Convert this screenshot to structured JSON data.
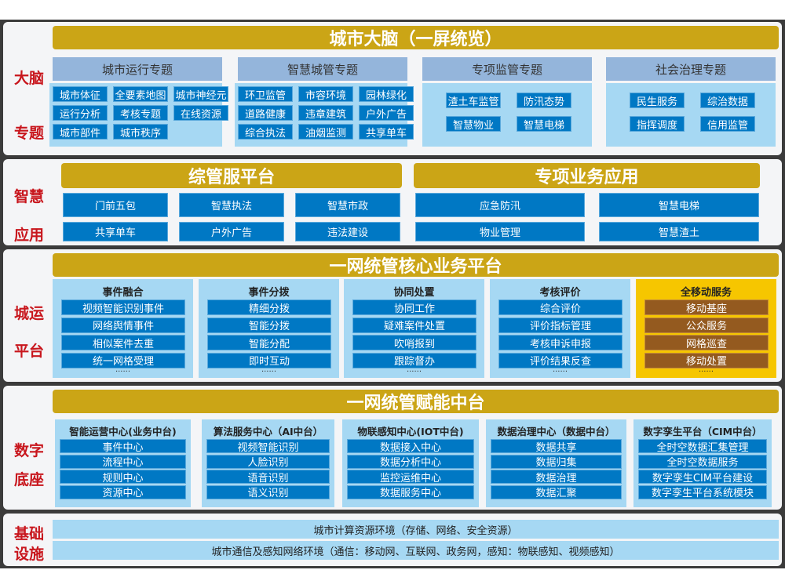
{
  "brain": {
    "side": [
      "大脑",
      "专题"
    ],
    "title": "城市大脑（一屏统览）",
    "columns": [
      {
        "title": "城市运行专题",
        "items": [
          "城市体征",
          "全要素地图",
          "城市神经元",
          "运行分析",
          "考核专题",
          "在线资源",
          "城市部件",
          "城市秩序"
        ]
      },
      {
        "title": "智慧城管专题",
        "items": [
          "环卫监管",
          "市容环境",
          "园林绿化",
          "道路健康",
          "违章建筑",
          "户外广告",
          "综合执法",
          "油烟监测",
          "共享单车"
        ]
      },
      {
        "title": "专项监管专题",
        "items": [
          "渣土车监管",
          "防汛态势",
          "智慧物业",
          "智慧电梯"
        ]
      },
      {
        "title": "社会治理专题",
        "items": [
          "民生服务",
          "综治数据",
          "指挥调度",
          "信用监管"
        ]
      }
    ]
  },
  "apps": {
    "side": [
      "智慧",
      "应用"
    ],
    "left": {
      "title": "综管服平台",
      "items": [
        "门前五包",
        "智慧执法",
        "智慧市政",
        "共享单车",
        "户外广告",
        "违法建设"
      ]
    },
    "right": {
      "title": "专项业务应用",
      "items": [
        "应急防汛",
        "智慧电梯",
        "物业管理",
        "智慧渣土"
      ]
    }
  },
  "ops": {
    "side": [
      "城运",
      "平台"
    ],
    "title": "一网统管核心业务平台",
    "more": "······",
    "columns": [
      {
        "title": "事件融合",
        "items": [
          "视频智能识别事件",
          "网络舆情事件",
          "相似案件去重",
          "统一网格受理"
        ]
      },
      {
        "title": "事件分拨",
        "items": [
          "精细分拨",
          "智能分拨",
          "智能分配",
          "即时互动"
        ]
      },
      {
        "title": "协同处置",
        "items": [
          "协同工作",
          "疑难案件处置",
          "吹哨报到",
          "跟踪督办"
        ]
      },
      {
        "title": "考核评价",
        "items": [
          "综合评价",
          "评价指标管理",
          "考核申诉申报",
          "评价结果反查"
        ]
      },
      {
        "title": "全移动服务",
        "items": [
          "移动基座",
          "公众服务",
          "网格巡查",
          "移动处置"
        ],
        "highlight": true
      }
    ]
  },
  "base": {
    "side": [
      "数字",
      "底座"
    ],
    "title": "一网统管赋能中台",
    "columns": [
      {
        "title": "智能运营中心(业务中台)",
        "items": [
          "事件中心",
          "流程中心",
          "规则中心",
          "资源中心"
        ]
      },
      {
        "title": "算法服务中心（AI中台）",
        "items": [
          "视频智能识别",
          "人脸识别",
          "语音识别",
          "语义识别"
        ]
      },
      {
        "title": "物联感知中心(IOT中台)",
        "items": [
          "数据接入中心",
          "数据分析中心",
          "监控运维中心",
          "数据服务中心"
        ]
      },
      {
        "title": "数据治理中心（数据中台）",
        "items": [
          "数据共享",
          "数据归集",
          "数据治理",
          "数据汇聚"
        ]
      },
      {
        "title": "数字孪生平台（CIM中台）",
        "items": [
          "全时空数据汇集管理",
          "全时空数据服务",
          "数字孪生CIM平台建设",
          "数字孪生平台系统模块"
        ]
      }
    ]
  },
  "infra": {
    "side": [
      "基础",
      "设施"
    ],
    "rows": [
      "城市计算资源环境（存储、网络、安全资源）",
      "城市通信及感知网络环境（通信：移动网、互联网、政务网，感知：物联感知、视频感知）"
    ]
  },
  "colors": {
    "gold": "#cba516",
    "blue": "#0078c4",
    "light_blue": "#a6d8f3",
    "header_blue": "#94b5db",
    "red": "#c8161d",
    "mobile_yellow": "#f6c600",
    "mobile_brown": "#945a1f"
  }
}
